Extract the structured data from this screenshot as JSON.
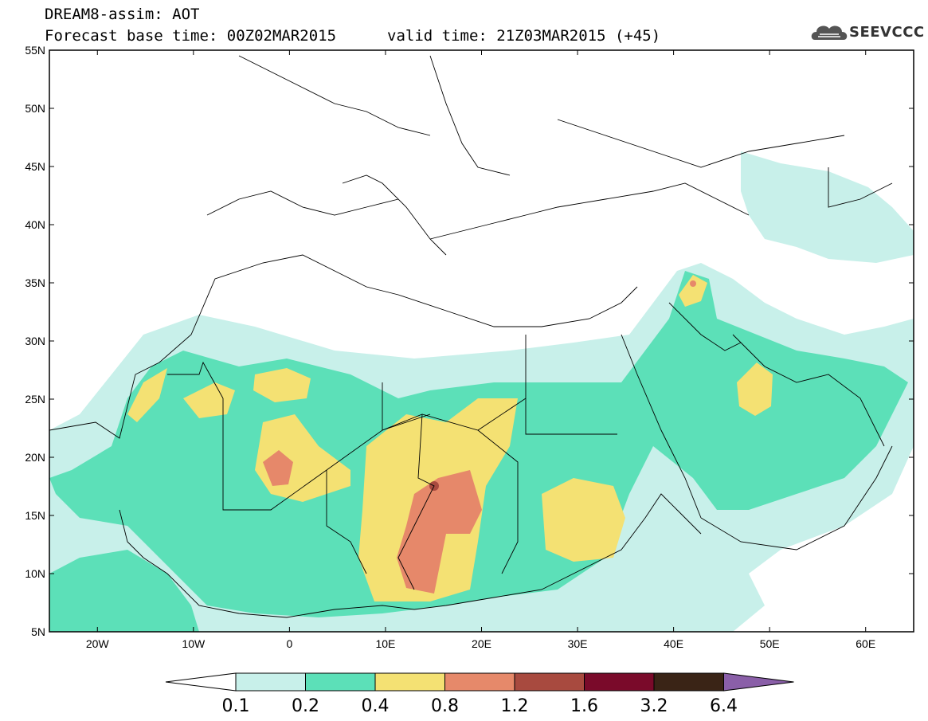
{
  "header": {
    "line1": "DREAM8-assim: AOT",
    "line2_left": "Forecast base time: 00Z02MAR2015",
    "line2_right": "valid time: 21Z03MAR2015 (+45)"
  },
  "logo": {
    "text": "SEEVCCC",
    "icon": "cloud-icon"
  },
  "map": {
    "lat_ticks": [
      "55N",
      "50N",
      "45N",
      "40N",
      "35N",
      "30N",
      "25N",
      "20N",
      "15N",
      "10N",
      "5N"
    ],
    "lon_ticks": [
      "20W",
      "10W",
      "0",
      "10E",
      "20E",
      "30E",
      "40E",
      "50E",
      "60E"
    ],
    "lat_range": [
      5,
      55
    ],
    "lon_range": [
      -25,
      65
    ]
  },
  "colorbar": {
    "labels": [
      "0.1",
      "0.2",
      "0.4",
      "0.8",
      "1.2",
      "1.6",
      "3.2",
      "6.4"
    ],
    "colors": [
      "#c8f0ea",
      "#5ce0b8",
      "#f4e173",
      "#e6896a",
      "#a84a3f",
      "#7a0a2a",
      "#3a2416",
      "#8a5fa8"
    ]
  }
}
